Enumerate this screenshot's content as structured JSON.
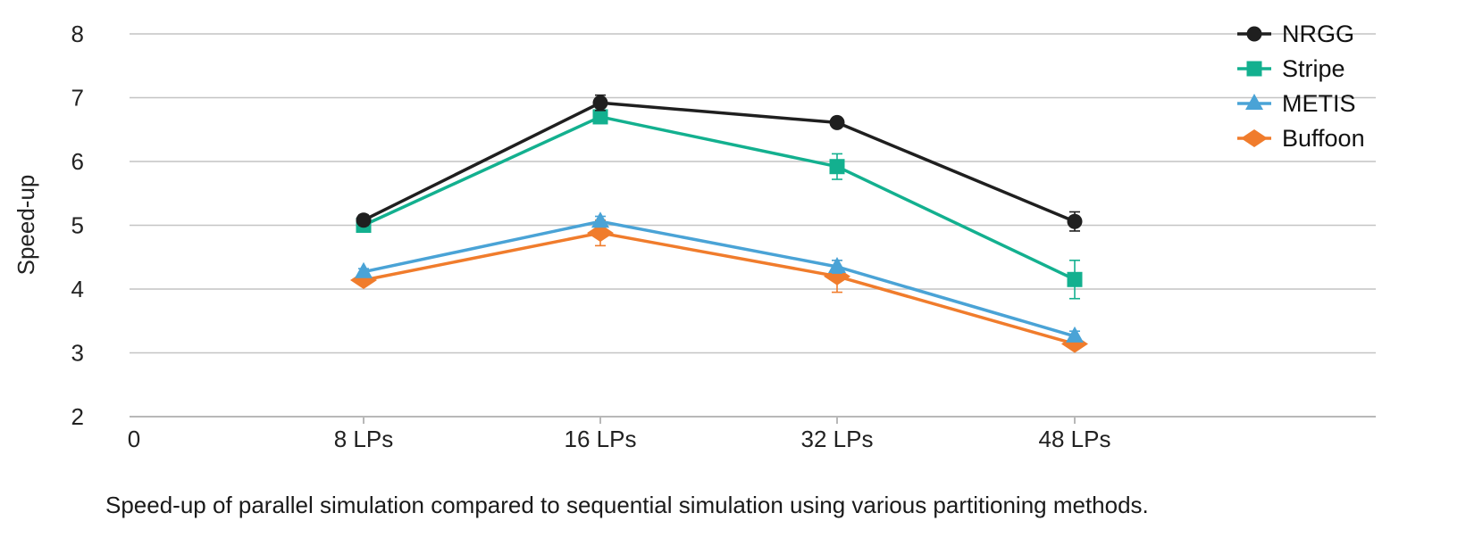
{
  "chart_data": {
    "type": "line",
    "title": "",
    "caption": "Speed-up of parallel simulation compared to sequential simulation using various partitioning methods.",
    "xlabel": "",
    "ylabel": "Speed-up",
    "x_origin_label": "0",
    "categories": [
      "8 LPs",
      "16 LPs",
      "32 LPs",
      "48 LPs"
    ],
    "yticks": [
      2,
      3,
      4,
      5,
      6,
      7,
      8
    ],
    "ylim": [
      2,
      8
    ],
    "grid": true,
    "legend_position": "top-right",
    "series": [
      {
        "name": "NRGG",
        "color": "#1f1f1f",
        "marker": "circle",
        "values": [
          5.08,
          6.92,
          6.61,
          5.06
        ],
        "error": [
          0.08,
          0.12,
          0.06,
          0.15
        ]
      },
      {
        "name": "Stripe",
        "color": "#13b08f",
        "marker": "square",
        "values": [
          5.0,
          6.7,
          5.92,
          4.15
        ],
        "error": [
          0.07,
          0.1,
          0.2,
          0.3
        ]
      },
      {
        "name": "METIS",
        "color": "#4aa3d6",
        "marker": "triangle",
        "values": [
          4.27,
          5.06,
          4.35,
          3.26
        ],
        "error": [
          0.05,
          0.08,
          0.1,
          0.08
        ]
      },
      {
        "name": "Buffoon",
        "color": "#f07c2c",
        "marker": "diamond",
        "values": [
          4.14,
          4.88,
          4.2,
          3.14
        ],
        "error": [
          0.05,
          0.2,
          0.25,
          0.06
        ]
      }
    ]
  }
}
